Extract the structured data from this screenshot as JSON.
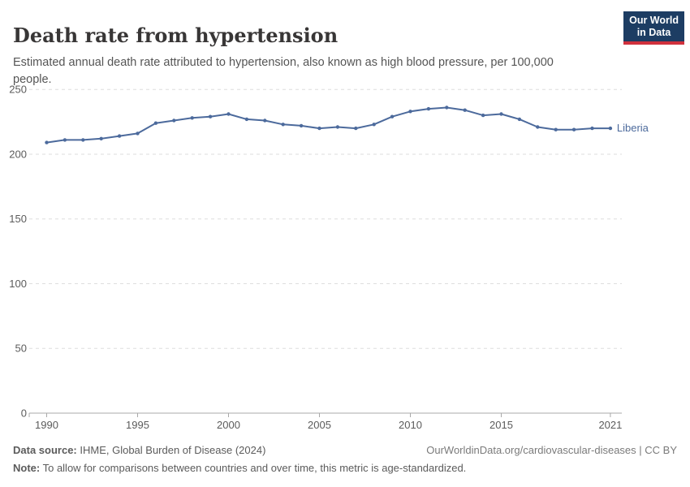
{
  "header": {
    "title": "Death rate from hypertension",
    "subtitle_lines": [
      "Estimated annual death rate attributed to hypertension, also known as high blood pressure, per 100,000",
      "people."
    ],
    "logo": {
      "line1": "Our World",
      "line2": "in Data",
      "bg_color": "#1d3d63",
      "accent_color": "#d0313d"
    }
  },
  "chart_data": {
    "type": "line",
    "title": "Death rate from hypertension",
    "xlabel": "",
    "ylabel": "",
    "x": [
      1990,
      1991,
      1992,
      1993,
      1994,
      1995,
      1996,
      1997,
      1998,
      1999,
      2000,
      2001,
      2002,
      2003,
      2004,
      2005,
      2006,
      2007,
      2008,
      2009,
      2010,
      2011,
      2012,
      2013,
      2014,
      2015,
      2016,
      2017,
      2018,
      2019,
      2020,
      2021
    ],
    "series": [
      {
        "name": "Liberia",
        "color": "#4C6A9C",
        "values": [
          209,
          211,
          211,
          212,
          214,
          216,
          224,
          226,
          228,
          229,
          231,
          227,
          226,
          223,
          222,
          220,
          221,
          220,
          223,
          229,
          233,
          235,
          236,
          234,
          230,
          231,
          227,
          221,
          219,
          219,
          220,
          220
        ]
      }
    ],
    "ylim": [
      0,
      250
    ],
    "y_ticks": [
      0,
      50,
      100,
      150,
      200,
      250
    ],
    "x_ticks": [
      1990,
      1995,
      2000,
      2005,
      2010,
      2015,
      2021
    ],
    "grid": "dashed-horizontal",
    "legend_position": "end-of-line-label",
    "axis_color": "#a8a8a8",
    "grid_color": "#dedede",
    "tick_label_color": "#5b5b5b"
  },
  "footer": {
    "source_label": "Data source:",
    "source_text": " IHME, Global Burden of Disease (2024)",
    "attribution": "OurWorldinData.org/cardiovascular-diseases | CC BY",
    "note_label": "Note:",
    "note_text": " To allow for comparisons between countries and over time, this metric is age-standardized."
  }
}
